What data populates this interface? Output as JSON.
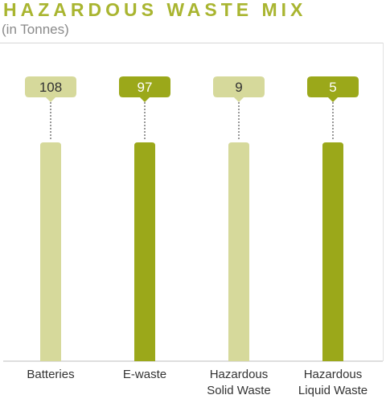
{
  "chart_data": {
    "type": "bar",
    "title": "HAZARDOUS WASTE MIX",
    "subtitle": "(in Tonnes)",
    "categories": [
      "Batteries",
      "E-waste",
      "Hazardous\nSolid Waste",
      "Hazardous\nLiquid Waste"
    ],
    "values": [
      108,
      97,
      9,
      5
    ],
    "value_labels": [
      "108",
      "97",
      "9",
      "5"
    ],
    "bar_colors": [
      "#d6d99b",
      "#9ba81a",
      "#d6d99b",
      "#9ba81a"
    ],
    "xlabel": "",
    "ylabel": "",
    "grid": false,
    "legend": "none"
  },
  "colors": {
    "title": "#a9b530",
    "light_bar": "#d6d99b",
    "dark_bar": "#9ba81a",
    "axis": "#bcbcbc",
    "leader": "#555555"
  }
}
